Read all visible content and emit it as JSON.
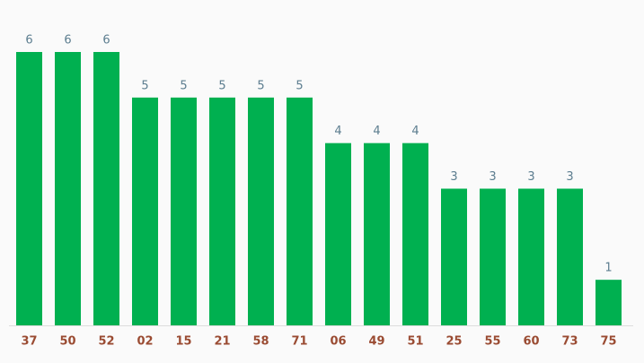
{
  "chart_data": {
    "type": "bar",
    "categories": [
      "37",
      "50",
      "52",
      "02",
      "15",
      "21",
      "58",
      "71",
      "06",
      "49",
      "51",
      "25",
      "55",
      "60",
      "73",
      "75"
    ],
    "values": [
      6,
      6,
      6,
      5,
      5,
      5,
      5,
      5,
      4,
      4,
      4,
      3,
      3,
      3,
      3,
      1
    ],
    "color": "#00b050"
  }
}
